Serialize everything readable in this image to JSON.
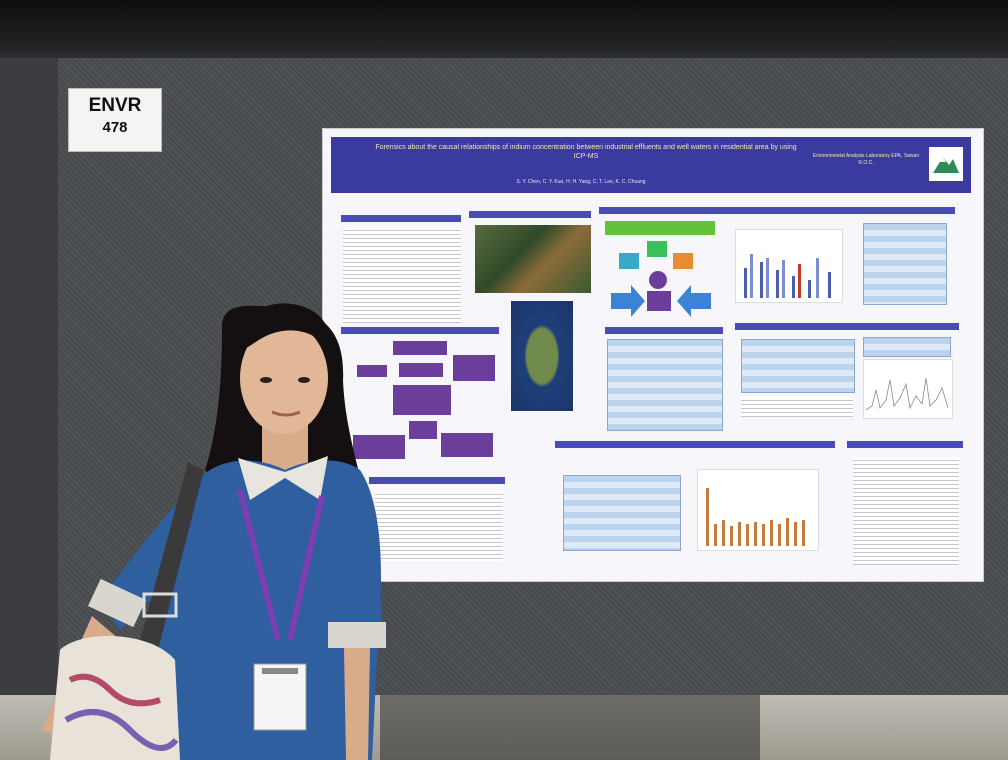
{
  "booth_sign": {
    "line1": "ENVR",
    "line2": "478"
  },
  "poster": {
    "title": "Forensics about the causal relationships of indium concentration between industrial effluents and well waters in residential area by using ICP-MS",
    "authors": "S. Y. Chen, C. Y. Kuo, H. H. Yang, C. T. Lee, K. C. Chuang",
    "affiliation": "Environmental Analysis Laboratory EPA, Taiwan R.O.C."
  },
  "colors": {
    "poster_header": "#3b3a9e",
    "section_bar": "#4a4cb5",
    "flow_box": "#6c3e9c",
    "lanyard": "#7a3fb3",
    "sweater": "#2f5f9e",
    "board": "#4a4d50"
  }
}
